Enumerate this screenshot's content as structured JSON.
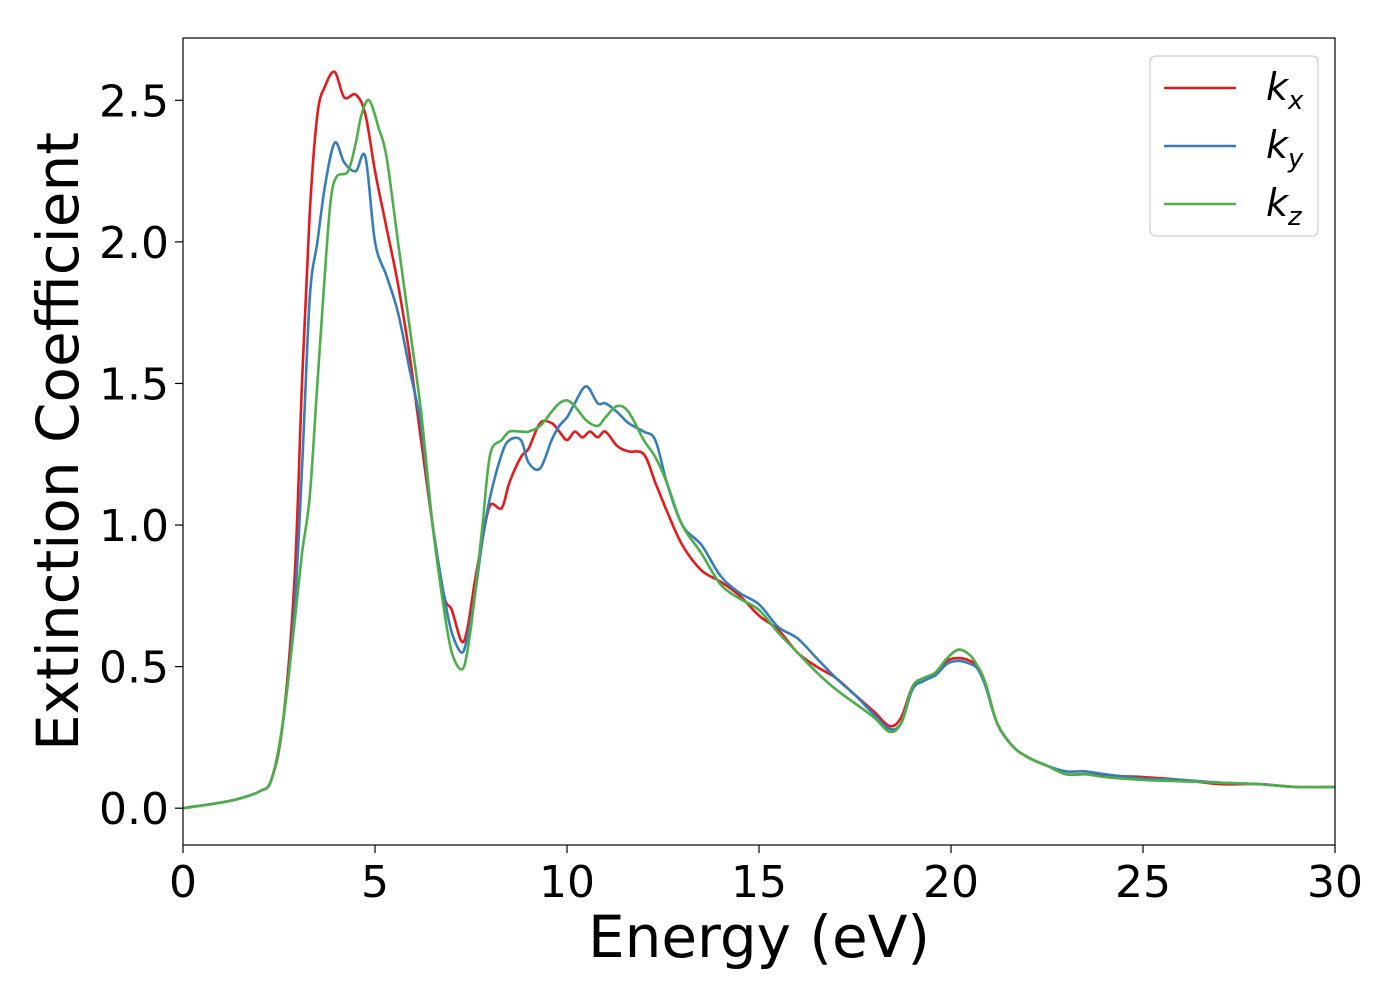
{
  "chart_data": {
    "type": "line",
    "title": "",
    "xlabel": "Energy (eV)",
    "ylabel": "Extinction Coefficient",
    "xlim": [
      0,
      30
    ],
    "ylim": [
      -0.13,
      2.72
    ],
    "xticks": [
      0,
      5,
      10,
      15,
      20,
      25,
      30
    ],
    "xtick_labels": [
      "0",
      "5",
      "10",
      "15",
      "20",
      "25",
      "30"
    ],
    "yticks": [
      0.0,
      0.5,
      1.0,
      1.5,
      2.0,
      2.5
    ],
    "ytick_labels": [
      "0.0",
      "0.5",
      "1.0",
      "1.5",
      "2.0",
      "2.5"
    ],
    "grid": false,
    "legend_position": "top-right",
    "series": [
      {
        "name": "k",
        "subscript": "x",
        "color": "#e41a1c",
        "x": [
          0,
          1,
          1.5,
          2,
          2.3,
          2.6,
          2.9,
          3.1,
          3.3,
          3.5,
          3.7,
          3.95,
          4.2,
          4.5,
          4.75,
          5.0,
          5.3,
          5.6,
          5.9,
          6.2,
          6.5,
          6.8,
          7.0,
          7.25,
          7.4,
          7.6,
          7.8,
          8.0,
          8.3,
          8.5,
          8.8,
          9.0,
          9.3,
          9.6,
          9.8,
          10.0,
          10.2,
          10.4,
          10.6,
          10.8,
          11.0,
          11.3,
          11.6,
          12.0,
          12.3,
          12.6,
          13.0,
          13.5,
          14.0,
          14.5,
          15.0,
          15.5,
          16.0,
          16.5,
          17.0,
          17.5,
          18.0,
          18.4,
          18.7,
          19.0,
          19.3,
          19.6,
          19.9,
          20.2,
          20.5,
          20.7,
          20.9,
          21.2,
          21.6,
          22.0,
          22.5,
          23.0,
          23.5,
          24.0,
          25.0,
          26.0,
          27.0,
          28.0,
          29.0,
          30.0
        ],
        "y": [
          0.0,
          0.02,
          0.035,
          0.06,
          0.1,
          0.3,
          0.8,
          1.5,
          2.1,
          2.45,
          2.55,
          2.6,
          2.51,
          2.52,
          2.45,
          2.25,
          2.05,
          1.85,
          1.6,
          1.3,
          1.0,
          0.75,
          0.7,
          0.59,
          0.63,
          0.8,
          0.95,
          1.07,
          1.06,
          1.15,
          1.24,
          1.27,
          1.36,
          1.36,
          1.33,
          1.3,
          1.33,
          1.31,
          1.33,
          1.31,
          1.33,
          1.28,
          1.26,
          1.25,
          1.15,
          1.05,
          0.93,
          0.84,
          0.8,
          0.75,
          0.68,
          0.63,
          0.55,
          0.5,
          0.46,
          0.4,
          0.34,
          0.29,
          0.32,
          0.43,
          0.46,
          0.47,
          0.52,
          0.53,
          0.52,
          0.5,
          0.44,
          0.3,
          0.22,
          0.18,
          0.15,
          0.12,
          0.12,
          0.115,
          0.11,
          0.1,
          0.085,
          0.085,
          0.075,
          0.075
        ]
      },
      {
        "name": "k",
        "subscript": "y",
        "color": "#377eb8",
        "x": [
          0,
          1,
          1.5,
          2,
          2.3,
          2.6,
          2.9,
          3.1,
          3.3,
          3.5,
          3.7,
          3.95,
          4.2,
          4.5,
          4.75,
          5.0,
          5.3,
          5.6,
          5.9,
          6.2,
          6.5,
          6.8,
          7.0,
          7.25,
          7.4,
          7.6,
          7.8,
          8.0,
          8.3,
          8.5,
          8.8,
          9.0,
          9.3,
          9.6,
          9.8,
          10.0,
          10.2,
          10.5,
          10.8,
          11.0,
          11.3,
          11.6,
          12.0,
          12.3,
          12.6,
          13.0,
          13.5,
          14.0,
          14.5,
          15.0,
          15.5,
          16.0,
          16.5,
          17.0,
          17.5,
          18.0,
          18.4,
          18.7,
          19.0,
          19.3,
          19.6,
          19.9,
          20.2,
          20.5,
          20.7,
          20.9,
          21.2,
          21.6,
          22.0,
          22.5,
          23.0,
          23.5,
          24.0,
          25.0,
          26.0,
          27.0,
          28.0,
          29.0,
          30.0
        ],
        "y": [
          0.0,
          0.02,
          0.035,
          0.06,
          0.1,
          0.3,
          0.7,
          1.2,
          1.8,
          2.0,
          2.2,
          2.35,
          2.28,
          2.25,
          2.3,
          2.0,
          1.88,
          1.75,
          1.55,
          1.35,
          1.0,
          0.75,
          0.62,
          0.55,
          0.6,
          0.75,
          0.95,
          1.1,
          1.25,
          1.3,
          1.3,
          1.22,
          1.2,
          1.3,
          1.35,
          1.38,
          1.43,
          1.49,
          1.43,
          1.43,
          1.4,
          1.36,
          1.33,
          1.3,
          1.15,
          1.0,
          0.93,
          0.82,
          0.76,
          0.72,
          0.64,
          0.6,
          0.53,
          0.46,
          0.4,
          0.33,
          0.28,
          0.3,
          0.42,
          0.45,
          0.47,
          0.51,
          0.52,
          0.51,
          0.49,
          0.43,
          0.3,
          0.22,
          0.18,
          0.15,
          0.13,
          0.13,
          0.12,
          0.105,
          0.1,
          0.09,
          0.085,
          0.075,
          0.075
        ]
      },
      {
        "name": "k",
        "subscript": "z",
        "color": "#4daf4a",
        "x": [
          0,
          1,
          1.5,
          2,
          2.3,
          2.6,
          2.9,
          3.1,
          3.3,
          3.5,
          3.7,
          3.85,
          4.0,
          4.3,
          4.5,
          4.65,
          4.85,
          5.1,
          5.3,
          5.6,
          5.9,
          6.2,
          6.5,
          6.8,
          7.0,
          7.25,
          7.4,
          7.6,
          7.8,
          8.0,
          8.3,
          8.5,
          8.8,
          9.0,
          9.3,
          9.6,
          9.8,
          10.0,
          10.2,
          10.5,
          10.8,
          11.0,
          11.3,
          11.6,
          12.0,
          12.3,
          12.6,
          13.0,
          13.5,
          14.0,
          14.5,
          15.0,
          15.5,
          16.0,
          16.5,
          17.0,
          17.5,
          18.0,
          18.4,
          18.7,
          19.0,
          19.3,
          19.6,
          19.9,
          20.2,
          20.5,
          20.7,
          20.9,
          21.2,
          21.6,
          22.0,
          22.5,
          23.0,
          23.5,
          24.0,
          25.0,
          26.0,
          27.0,
          28.0,
          29.0,
          30.0
        ],
        "y": [
          0.0,
          0.02,
          0.035,
          0.06,
          0.1,
          0.3,
          0.65,
          0.9,
          1.1,
          1.5,
          1.9,
          2.15,
          2.23,
          2.25,
          2.35,
          2.45,
          2.5,
          2.4,
          2.3,
          2.0,
          1.7,
          1.4,
          1.0,
          0.7,
          0.55,
          0.49,
          0.55,
          0.75,
          1.0,
          1.25,
          1.3,
          1.33,
          1.33,
          1.33,
          1.35,
          1.4,
          1.43,
          1.44,
          1.42,
          1.37,
          1.35,
          1.38,
          1.42,
          1.4,
          1.3,
          1.24,
          1.15,
          1.0,
          0.9,
          0.79,
          0.74,
          0.7,
          0.62,
          0.55,
          0.48,
          0.42,
          0.37,
          0.32,
          0.27,
          0.3,
          0.43,
          0.46,
          0.48,
          0.53,
          0.56,
          0.54,
          0.5,
          0.44,
          0.3,
          0.22,
          0.18,
          0.15,
          0.12,
          0.12,
          0.11,
          0.1,
          0.095,
          0.09,
          0.085,
          0.075,
          0.075
        ]
      }
    ]
  }
}
